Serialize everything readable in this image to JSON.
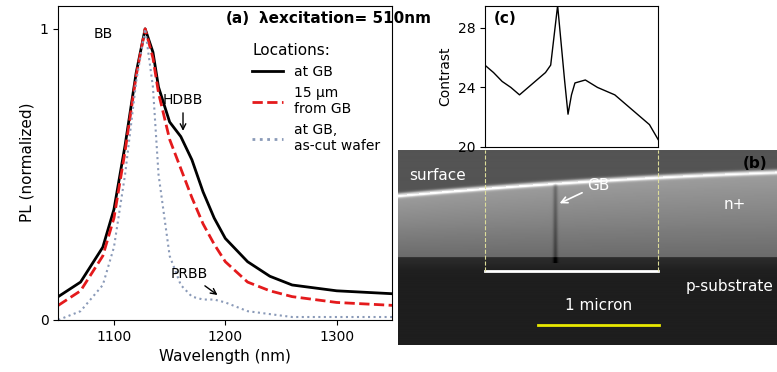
{
  "chart_data": [
    {
      "type": "line",
      "panel_label": "(a)",
      "annotation": "λexcitation= 510nm",
      "x_label": "Wavelength (nm)",
      "y_label": "PL (normalized)",
      "x": [
        1050,
        1070,
        1090,
        1100,
        1110,
        1120,
        1128,
        1135,
        1140,
        1150,
        1160,
        1170,
        1180,
        1190,
        1200,
        1220,
        1240,
        1260,
        1280,
        1300,
        1350
      ],
      "series": [
        {
          "name": "at GB",
          "color": "#000000",
          "line_style": "solid",
          "values": [
            0.08,
            0.13,
            0.25,
            0.38,
            0.6,
            0.85,
            1.0,
            0.92,
            0.8,
            0.68,
            0.63,
            0.55,
            0.44,
            0.35,
            0.28,
            0.2,
            0.15,
            0.12,
            0.11,
            0.1,
            0.09
          ]
        },
        {
          "name": "15 μm\nfrom GB",
          "color": "#e41a1c",
          "line_style": "dashed",
          "values": [
            0.05,
            0.1,
            0.22,
            0.35,
            0.58,
            0.84,
            1.0,
            0.9,
            0.78,
            0.62,
            0.52,
            0.42,
            0.33,
            0.26,
            0.2,
            0.13,
            0.1,
            0.08,
            0.07,
            0.06,
            0.05
          ]
        },
        {
          "name": "at GB,\nas-cut wafer",
          "color": "#8a9ab8",
          "line_style": "dotted",
          "values": [
            0.0,
            0.03,
            0.12,
            0.25,
            0.5,
            0.82,
            1.0,
            0.8,
            0.5,
            0.22,
            0.12,
            0.08,
            0.07,
            0.07,
            0.06,
            0.03,
            0.02,
            0.01,
            0.01,
            0.01,
            0.01
          ]
        }
      ],
      "legend_title": "Locations:",
      "legend": "upper right",
      "peak_labels": [
        {
          "text": "BB",
          "x": 1128,
          "y": 1.0
        },
        {
          "text": "HDBB",
          "x": 1162,
          "y": 0.64
        },
        {
          "text": "PRBB",
          "x": 1195,
          "y": 0.08
        }
      ],
      "xlim": [
        1050,
        1350
      ],
      "xticks": [
        1100,
        1200,
        1300
      ],
      "ylim": [
        0,
        1.08
      ],
      "yticks": [
        0,
        1
      ]
    },
    {
      "type": "line",
      "panel_label": "(c)",
      "y_label": "Contrast",
      "x": [
        0,
        5,
        10,
        15,
        20,
        25,
        30,
        35,
        38,
        40,
        42,
        44,
        46,
        48,
        50,
        52,
        58,
        65,
        75,
        85,
        95,
        100
      ],
      "series": [
        {
          "name": "Contrast",
          "color": "#000000",
          "line_style": "solid",
          "values": [
            25.5,
            25.0,
            24.4,
            24.0,
            23.5,
            24.0,
            24.5,
            25.0,
            25.5,
            27.5,
            29.5,
            27.0,
            24.5,
            22.2,
            23.5,
            24.3,
            24.5,
            24.0,
            23.5,
            22.5,
            21.5,
            20.5
          ]
        }
      ],
      "xlim": [
        0,
        100
      ],
      "ylim": [
        20,
        29.5
      ],
      "yticks": [
        20,
        24,
        28
      ],
      "tick_labels": "y"
    }
  ],
  "micrograph": {
    "panel_label": "(b)",
    "surface_label": "surface",
    "boundary_label": "GB",
    "layer_label": "n+",
    "substrate_label": "p-substrate",
    "scale_bar": "1 micron"
  }
}
